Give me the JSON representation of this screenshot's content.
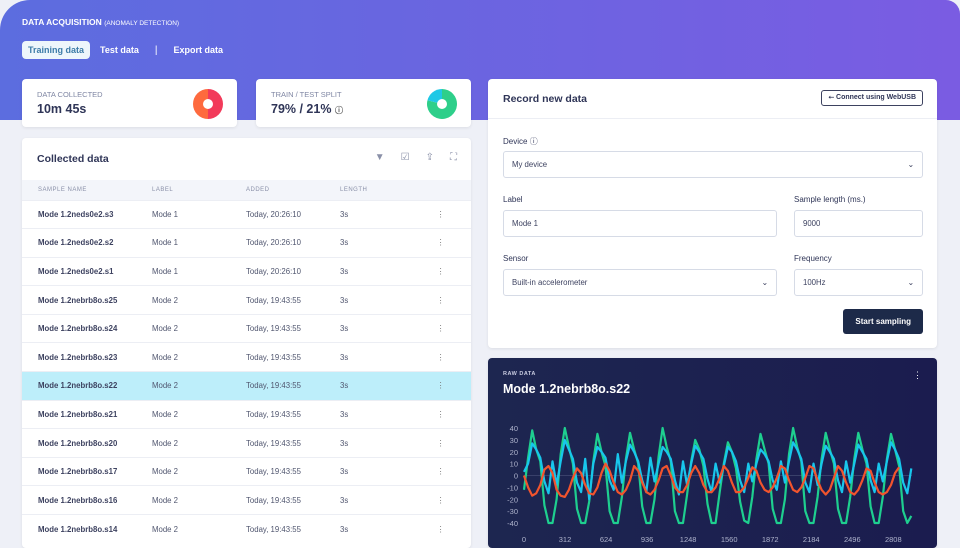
{
  "header": {
    "title": "DATA ACQUISITION",
    "subtitle": "(ANOMALY DETECTION)",
    "tabs": [
      {
        "label": "Training data",
        "active": true
      },
      {
        "label": "Test data"
      },
      {
        "label": "Export data"
      }
    ]
  },
  "stats": {
    "collected_label": "DATA COLLECTED",
    "collected_value": "10m 45s",
    "split_label": "TRAIN / TEST SPLIT",
    "split_value": "79% / 21%",
    "split_train_pct": 79,
    "colors": {
      "collected_a": "#fe6a3e",
      "collected_b": "#f23a5a",
      "train": "#2ecf8a",
      "test": "#1ec8e6"
    }
  },
  "collected": {
    "title": "Collected data",
    "icons": [
      "filter-icon",
      "checkbox-icon",
      "upload-icon",
      "fullscreen-icon"
    ],
    "columns": [
      "SAMPLE NAME",
      "LABEL",
      "ADDED",
      "LENGTH"
    ],
    "rows": [
      [
        "Mode 1.2neds0e2.s3",
        "Mode 1",
        "Today, 20:26:10",
        "3s"
      ],
      [
        "Mode 1.2neds0e2.s2",
        "Mode 1",
        "Today, 20:26:10",
        "3s"
      ],
      [
        "Mode 1.2neds0e2.s1",
        "Mode 1",
        "Today, 20:26:10",
        "3s"
      ],
      [
        "Mode 1.2nebrb8o.s25",
        "Mode 2",
        "Today, 19:43:55",
        "3s"
      ],
      [
        "Mode 1.2nebrb8o.s24",
        "Mode 2",
        "Today, 19:43:55",
        "3s"
      ],
      [
        "Mode 1.2nebrb8o.s23",
        "Mode 2",
        "Today, 19:43:55",
        "3s"
      ],
      [
        "Mode 1.2nebrb8o.s22",
        "Mode 2",
        "Today, 19:43:55",
        "3s"
      ],
      [
        "Mode 1.2nebrb8o.s21",
        "Mode 2",
        "Today, 19:43:55",
        "3s"
      ],
      [
        "Mode 1.2nebrb8o.s20",
        "Mode 2",
        "Today, 19:43:55",
        "3s"
      ],
      [
        "Mode 1.2nebrb8o.s17",
        "Mode 2",
        "Today, 19:43:55",
        "3s"
      ],
      [
        "Mode 1.2nebrb8o.s16",
        "Mode 2",
        "Today, 19:43:55",
        "3s"
      ],
      [
        "Mode 1.2nebrb8o.s14",
        "Mode 2",
        "Today, 19:43:55",
        "3s"
      ]
    ],
    "selected_index": 6
  },
  "record": {
    "title": "Record new data",
    "connect_label": "Connect using WebUSB",
    "device_label": "Device",
    "device_value": "My device",
    "label_label": "Label",
    "label_value": "Mode 1",
    "length_label": "Sample length (ms.)",
    "length_value": "9000",
    "sensor_label": "Sensor",
    "sensor_value": "Built-in accelerometer",
    "freq_label": "Frequency",
    "freq_value": "100Hz",
    "start_label": "Start sampling"
  },
  "raw": {
    "label": "RAW DATA",
    "title": "Mode 1.2nebrb8o.s22"
  },
  "chart_data": {
    "type": "line",
    "ylim": [
      -40,
      40
    ],
    "yticks": [
      40,
      30,
      20,
      10,
      0,
      -10,
      -20,
      -30,
      -40
    ],
    "xticks": [
      0,
      312,
      624,
      936,
      1248,
      1560,
      1872,
      2184,
      2496,
      2808
    ],
    "x_start": 0,
    "x_step": 31,
    "series": [
      {
        "color": "#1ecf8f",
        "values": [
          -12,
          15,
          38,
          22,
          12,
          -25,
          -40,
          -40,
          -20,
          18,
          40,
          24,
          10,
          -28,
          -40,
          -40,
          -22,
          12,
          35,
          20,
          8,
          -30,
          -40,
          -40,
          -18,
          14,
          36,
          22,
          10,
          -26,
          -40,
          -40,
          -20,
          16,
          40,
          24,
          12,
          -30,
          -40,
          -40,
          -16,
          12,
          30,
          22,
          8,
          -24,
          -40,
          -40,
          -14,
          10,
          28,
          20,
          6,
          -22,
          -38,
          -40,
          -18,
          14,
          35,
          22,
          10,
          -28,
          -40,
          -40,
          -20,
          18,
          40,
          24,
          12,
          -30,
          -40,
          -40,
          -18,
          14,
          36,
          22,
          10,
          -28,
          -40,
          -40,
          -18,
          14,
          36,
          22,
          10,
          -26,
          -40,
          -40,
          -18,
          14,
          35,
          22,
          8,
          -30,
          -40,
          -34
        ]
      },
      {
        "color": "#18c6ec",
        "values": [
          3,
          10,
          27,
          22,
          15,
          -5,
          -15,
          12,
          -8,
          12,
          30,
          22,
          14,
          -6,
          -14,
          14,
          -20,
          10,
          24,
          20,
          15,
          -4,
          -12,
          18,
          -6,
          12,
          26,
          20,
          12,
          -4,
          -14,
          15,
          -5,
          10,
          24,
          20,
          14,
          -4,
          -16,
          12,
          -8,
          10,
          25,
          20,
          14,
          -3,
          -14,
          10,
          -6,
          8,
          24,
          20,
          12,
          -4,
          -14,
          10,
          -5,
          10,
          22,
          18,
          12,
          -4,
          -12,
          12,
          -6,
          12,
          28,
          22,
          14,
          -6,
          -14,
          10,
          -8,
          10,
          25,
          20,
          14,
          -4,
          -14,
          12,
          -6,
          10,
          26,
          20,
          14,
          -4,
          -14,
          10,
          -5,
          12,
          28,
          22,
          14,
          -6,
          -15,
          6
        ]
      },
      {
        "color": "#f2542d",
        "values": [
          0,
          -10,
          -17,
          -15,
          -8,
          5,
          8,
          2,
          -12,
          -17,
          -18,
          -12,
          -2,
          6,
          2,
          -8,
          -15,
          -16,
          -10,
          2,
          10,
          4,
          -6,
          -14,
          -16,
          -12,
          -4,
          8,
          4,
          -6,
          -14,
          -16,
          -12,
          -4,
          6,
          8,
          0,
          -10,
          -14,
          -14,
          -8,
          2,
          8,
          2,
          -8,
          -14,
          -14,
          -10,
          -2,
          8,
          4,
          -6,
          -14,
          -14,
          -10,
          -2,
          7,
          4,
          -6,
          -12,
          -14,
          -10,
          -2,
          8,
          6,
          -4,
          -12,
          -14,
          -10,
          -2,
          8,
          6,
          -4,
          -12,
          -16,
          -12,
          -2,
          8,
          4,
          -6,
          -14,
          -16,
          -12,
          -4,
          6,
          4,
          -6,
          -14,
          -16,
          -14,
          -8,
          2,
          7
        ]
      }
    ]
  }
}
